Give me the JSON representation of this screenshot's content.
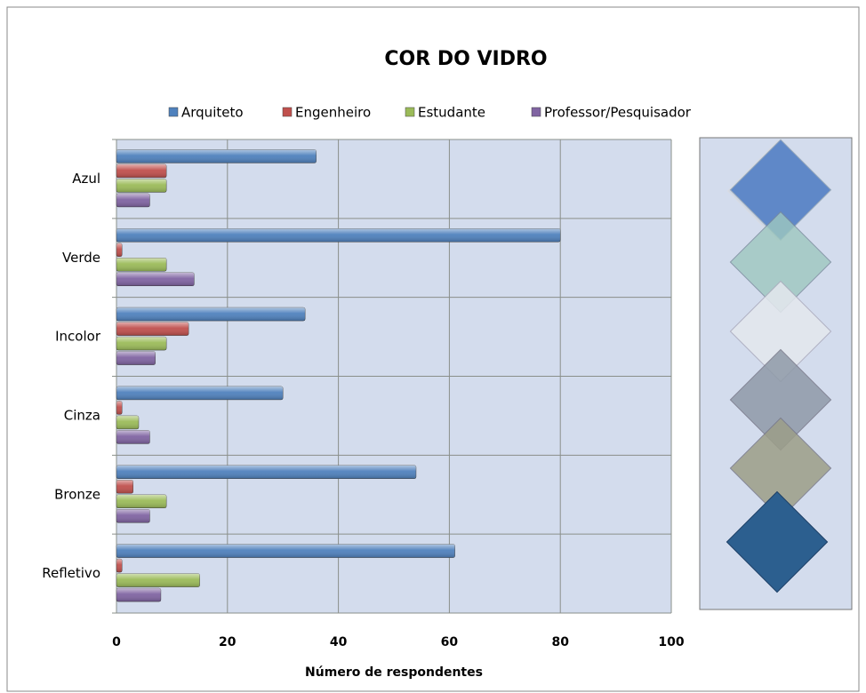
{
  "chart_data": {
    "type": "hbar",
    "title": "COR DO VIDRO",
    "x_label": "Número de respondentes",
    "categories": [
      "Azul",
      "Verde",
      "Incolor",
      "Cinza",
      "Bronze",
      "Refletivo"
    ],
    "series": [
      {
        "name": "Arquiteto",
        "color": "#4f81bd",
        "values": [
          36,
          80,
          34,
          30,
          54,
          61
        ]
      },
      {
        "name": "Engenheiro",
        "color": "#c0504d",
        "values": [
          9,
          1,
          13,
          1,
          3,
          1
        ]
      },
      {
        "name": "Estudante",
        "color": "#9bbb59",
        "values": [
          9,
          9,
          9,
          4,
          9,
          15
        ]
      },
      {
        "name": "Professor/Pesquisador",
        "color": "#8064a2",
        "values": [
          6,
          14,
          7,
          6,
          6,
          8
        ]
      }
    ],
    "xlim": [
      0,
      100
    ],
    "xticks": [
      0,
      20,
      40,
      60,
      80,
      100
    ],
    "grid": true,
    "legend": "top"
  }
}
